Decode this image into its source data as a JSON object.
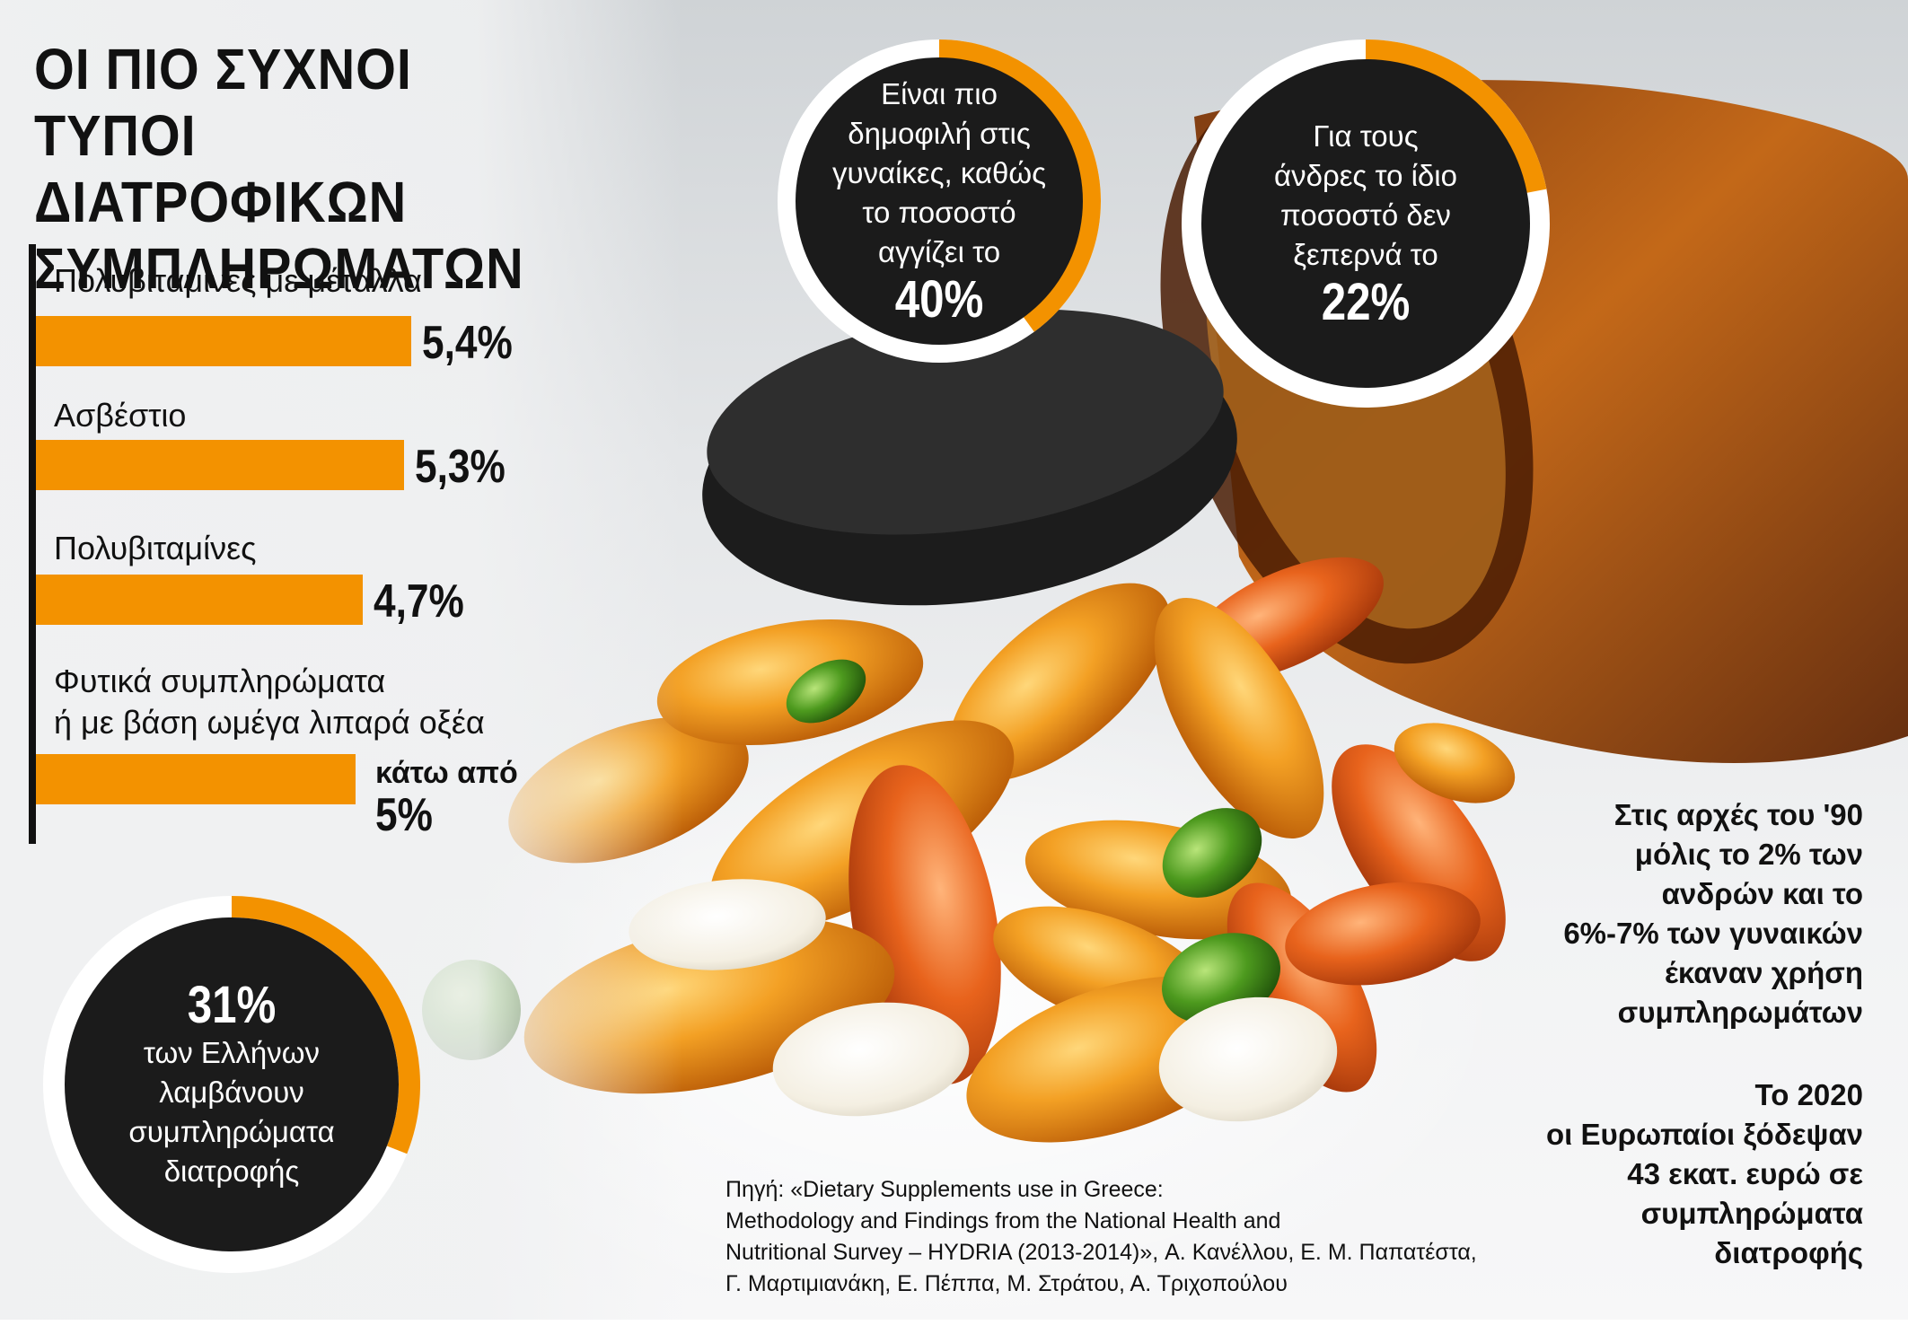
{
  "title_lines": [
    "ΟΙ ΠΙΟ ΣΥΧΝΟΙ ΤΥΠΟΙ",
    "ΔΙΑΤΡΟΦΙΚΩΝ",
    "ΣΥΜΠΛΗΡΩΜΑΤΩΝ"
  ],
  "chart_data": {
    "type": "bar",
    "orientation": "horizontal",
    "title": "ΟΙ ΠΙΟ ΣΥΧΝΟΙ ΤΥΠΟΙ ΔΙΑΤΡΟΦΙΚΩΝ ΣΥΜΠΛΗΡΩΜΑΤΩΝ",
    "categories": [
      "Πολυβιταμίνες με μέταλλα",
      "Ασβέστιο",
      "Πολυβιταμίνες",
      "Φυτικά συμπληρώματα ή με βάση ωμέγα λιπαρά οξέα"
    ],
    "category_lines": [
      [
        "Πολυβιταμίνες με μέταλλα"
      ],
      [
        "Ασβέστιο"
      ],
      [
        "Πολυβιταμίνες"
      ],
      [
        "Φυτικά συμπληρώματα",
        "ή με βάση ωμέγα λιπαρά οξέα"
      ]
    ],
    "values": [
      5.4,
      5.3,
      4.7,
      4.6
    ],
    "value_labels": [
      "5,4%",
      "5,3%",
      "4,7%",
      "5%"
    ],
    "value_prefix_last": "κάτω από",
    "unit": "%",
    "color": "#f39200"
  },
  "circles": [
    {
      "lines": [
        "Είναι πιο",
        "δημοφιλή στις",
        "γυναίκες, καθώς",
        "το ποσοστό",
        "αγγίζει το"
      ],
      "pct_label": "40%",
      "value": 40
    },
    {
      "lines": [
        "Για τους",
        "άνδρες το ίδιο",
        "ποσοστό δεν",
        "ξεπερνά το"
      ],
      "pct_label": "22%",
      "value": 22
    },
    {
      "pct_label": "31%",
      "lines": [
        "των Ελλήνων",
        "λαμβάνουν",
        "συμπληρώματα",
        "διατροφής"
      ],
      "value": 31
    }
  ],
  "colors": {
    "accent": "#f39200",
    "circle_fill": "#1b1b1b"
  },
  "notes": [
    [
      "Στις αρχές του '90",
      "μόλις το 2% των",
      "ανδρών και το",
      "6%-7% των γυναικών",
      "έκαναν χρήση",
      "συμπληρωμάτων"
    ],
    [
      "Το 2020",
      "οι Ευρωπαίοι ξόδεψαν",
      "43 εκατ. ευρώ σε",
      "συμπληρώματα",
      "διατροφής"
    ]
  ],
  "source_lines": [
    "Πηγή: «Dietary Supplements use in Greece:",
    "Methodology and Findings from the National Health and",
    "Nutritional Survey – HYDRIA (2013-2014)», Α. Κανέλλου, Ε. Μ. Παπατέστα,",
    "Γ. Μαρτιμιανάκη, Ε. Πέππα, Μ. Στράτου, Α. Τριχοπούλου"
  ]
}
